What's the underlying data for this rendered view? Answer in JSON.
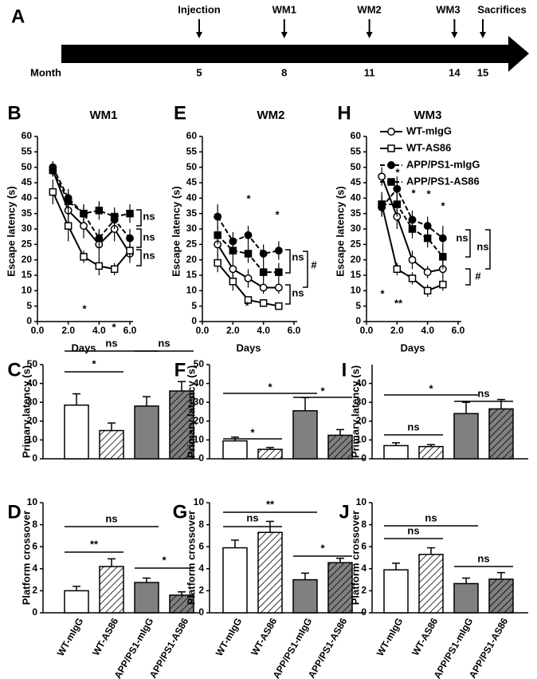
{
  "chart_data": [
    {
      "type": "timeline",
      "panel": "A",
      "xlabel": "Month",
      "events": [
        {
          "label": "Injection",
          "month": 5
        },
        {
          "label": "WM1",
          "month": 8
        },
        {
          "label": "WM2",
          "month": 11
        },
        {
          "label": "WM3",
          "month": 14
        },
        {
          "label": "Sacrifices",
          "month": 15
        }
      ]
    },
    {
      "type": "line",
      "panel": "B",
      "title": "WM1",
      "xlabel": "Days",
      "ylabel": "Escape latency (s)",
      "x": [
        1,
        2,
        3,
        4,
        5,
        6
      ],
      "xlim": [
        0,
        6
      ],
      "xticks": [
        {
          "value": 0,
          "label": "0.0"
        },
        {
          "value": 2,
          "label": "2.0"
        },
        {
          "value": 4,
          "label": "4.0"
        },
        {
          "value": 6,
          "label": "6.0"
        }
      ],
      "ylim": [
        0,
        60
      ],
      "yticks": [
        0,
        5,
        10,
        15,
        20,
        25,
        30,
        35,
        40,
        45,
        50,
        55,
        60
      ],
      "series": [
        {
          "color": "#000000",
          "marker": "circle",
          "filled": false,
          "dashed": false,
          "values": [
            49,
            36,
            31,
            25,
            30,
            22
          ],
          "errors": [
            2,
            4,
            4,
            4,
            4,
            3
          ]
        },
        {
          "color": "#000000",
          "marker": "square",
          "filled": false,
          "dashed": false,
          "values": [
            42,
            31,
            21,
            18,
            17,
            23
          ],
          "errors": [
            4,
            5,
            2,
            3,
            2,
            3
          ]
        },
        {
          "color": "#000000",
          "marker": "circle",
          "filled": true,
          "dashed": true,
          "values": [
            50,
            40,
            35,
            27,
            33,
            27
          ],
          "errors": [
            2,
            3,
            3,
            3,
            3,
            3
          ]
        },
        {
          "color": "#000000",
          "marker": "square",
          "filled": true,
          "dashed": true,
          "values": [
            49,
            39,
            35,
            36,
            34,
            35
          ],
          "errors": [
            2,
            3,
            3,
            3,
            3,
            3
          ]
        }
      ],
      "annotations": [
        "*",
        "*",
        "ns",
        "ns",
        "ns"
      ]
    },
    {
      "type": "line",
      "panel": "E",
      "title": "WM2",
      "xlabel": "Days",
      "ylabel": "Escape latency (s)",
      "x": [
        1,
        2,
        3,
        4,
        5
      ],
      "xlim": [
        0,
        6
      ],
      "xticks": [
        {
          "value": 0,
          "label": "0.0"
        },
        {
          "value": 2,
          "label": "2.0"
        },
        {
          "value": 4,
          "label": "4.0"
        },
        {
          "value": 6,
          "label": "6.0"
        }
      ],
      "ylim": [
        0,
        60
      ],
      "yticks": [
        0,
        5,
        10,
        15,
        20,
        25,
        30,
        35,
        40,
        45,
        50,
        55,
        60
      ],
      "series": [
        {
          "color": "#000000",
          "marker": "circle",
          "filled": false,
          "dashed": false,
          "values": [
            25,
            17,
            14,
            11,
            11
          ],
          "errors": [
            4,
            3,
            3,
            2,
            2
          ]
        },
        {
          "color": "#000000",
          "marker": "square",
          "filled": false,
          "dashed": false,
          "values": [
            19,
            13,
            7,
            6,
            5
          ],
          "errors": [
            3,
            3,
            1,
            1,
            1
          ]
        },
        {
          "color": "#000000",
          "marker": "circle",
          "filled": true,
          "dashed": true,
          "values": [
            34,
            26,
            28,
            22,
            23
          ],
          "errors": [
            4,
            3,
            3,
            3,
            3
          ]
        },
        {
          "color": "#000000",
          "marker": "square",
          "filled": true,
          "dashed": true,
          "values": [
            28,
            23,
            22,
            16,
            16
          ],
          "errors": [
            3,
            3,
            3,
            3,
            3
          ]
        }
      ],
      "annotations": [
        "*",
        "*",
        "*",
        "ns",
        "#",
        "ns"
      ]
    },
    {
      "type": "line",
      "panel": "H",
      "title": "WM3",
      "xlabel": "Days",
      "ylabel": "Escape latency (s)",
      "x": [
        1,
        2,
        3,
        4,
        5
      ],
      "xlim": [
        0,
        6
      ],
      "xticks": [
        {
          "value": 0,
          "label": "0.0"
        },
        {
          "value": 2,
          "label": "2.0"
        },
        {
          "value": 4,
          "label": "4.0"
        },
        {
          "value": 6,
          "label": "6.0"
        }
      ],
      "ylim": [
        0,
        60
      ],
      "yticks": [
        0,
        5,
        10,
        15,
        20,
        25,
        30,
        35,
        40,
        45,
        50,
        55,
        60
      ],
      "legend": "upper right",
      "series": [
        {
          "name": "WT-mIgG",
          "color": "#000000",
          "marker": "circle",
          "filled": false,
          "dashed": false,
          "values": [
            47,
            34,
            20,
            16,
            17
          ],
          "errors": [
            3,
            4,
            3,
            2,
            3
          ]
        },
        {
          "name": "WT-AS86",
          "color": "#000000",
          "marker": "square",
          "filled": false,
          "dashed": false,
          "values": [
            38,
            17,
            14,
            10,
            12
          ],
          "errors": [
            4,
            2,
            2,
            2,
            2
          ]
        },
        {
          "name": "APP/PS1-mIgG",
          "color": "#000000",
          "marker": "circle",
          "filled": true,
          "dashed": true,
          "values": [
            37,
            43,
            33,
            31,
            27
          ],
          "errors": [
            3,
            4,
            3,
            3,
            4
          ]
        },
        {
          "name": "APP/PS1-AS86",
          "color": "#000000",
          "marker": "square",
          "filled": true,
          "dashed": true,
          "values": [
            38,
            38,
            30,
            27,
            21
          ],
          "errors": [
            3,
            4,
            3,
            3,
            4
          ]
        }
      ],
      "annotations": [
        "*",
        "**",
        "*",
        "*",
        "*",
        "*",
        "ns",
        "ns",
        "#"
      ]
    },
    {
      "type": "bar",
      "panel": "C",
      "ylabel": "Primary latency (s)",
      "categories": [
        null,
        null,
        null,
        null
      ],
      "values": [
        28.5,
        15,
        28,
        36
      ],
      "errors": [
        6,
        4,
        5,
        5
      ],
      "colors": [
        "#ffffff",
        "#ffffff",
        "#808080",
        "#808080"
      ],
      "hatch": [
        false,
        true,
        false,
        true
      ],
      "ylim": [
        0,
        50
      ],
      "yticks": [
        0,
        10,
        20,
        30,
        40,
        50
      ],
      "annotations": [
        "ns",
        "*",
        "ns"
      ]
    },
    {
      "type": "bar",
      "panel": "F",
      "ylabel": "Primary latency (s)",
      "categories": [
        null,
        null,
        null,
        null
      ],
      "values": [
        9.5,
        5,
        25.5,
        12.5
      ],
      "errors": [
        2,
        1,
        7,
        3
      ],
      "colors": [
        "#ffffff",
        "#ffffff",
        "#808080",
        "#808080"
      ],
      "hatch": [
        false,
        true,
        false,
        true
      ],
      "ylim": [
        0,
        50
      ],
      "yticks": [
        0,
        10,
        20,
        30,
        40,
        50
      ],
      "annotations": [
        "*",
        "*",
        "*"
      ]
    },
    {
      "type": "bar",
      "panel": "I",
      "ylabel": "Primary latency (s)",
      "categories": [
        null,
        null,
        null,
        null
      ],
      "values": [
        7,
        6.5,
        24,
        26.5
      ],
      "errors": [
        1.5,
        1,
        6,
        5
      ],
      "colors": [
        "#ffffff",
        "#ffffff",
        "#808080",
        "#808080"
      ],
      "hatch": [
        false,
        true,
        false,
        true
      ],
      "ylim": [
        0,
        50
      ],
      "yticks": [
        0,
        10,
        20,
        30,
        40
      ],
      "annotations": [
        "*",
        "ns",
        "ns"
      ]
    },
    {
      "type": "bar",
      "panel": "D",
      "ylabel": "Platform crossover",
      "categories": [
        "WT-mIgG",
        "WT-AS86",
        "APP/PS1-mIgG",
        "APP/PS1-AS86"
      ],
      "values": [
        2,
        4.2,
        2.75,
        1.6
      ],
      "errors": [
        0.4,
        0.7,
        0.4,
        0.3
      ],
      "colors": [
        "#ffffff",
        "#ffffff",
        "#808080",
        "#808080"
      ],
      "hatch": [
        false,
        true,
        false,
        true
      ],
      "ylim": [
        0,
        10
      ],
      "yticks": [
        0,
        2,
        4,
        6,
        8,
        10
      ],
      "annotations": [
        "ns",
        "**",
        "*"
      ]
    },
    {
      "type": "bar",
      "panel": "G",
      "ylabel": "Platform crossover",
      "categories": [
        "WT-mIgG",
        "WT-AS86",
        "APP/PS1-mIgG",
        "APP/PS1-AS86"
      ],
      "values": [
        5.9,
        7.3,
        3,
        4.55
      ],
      "errors": [
        0.7,
        1,
        0.6,
        0.4
      ],
      "colors": [
        "#ffffff",
        "#ffffff",
        "#808080",
        "#808080"
      ],
      "hatch": [
        false,
        true,
        false,
        true
      ],
      "ylim": [
        0,
        10
      ],
      "yticks": [
        0,
        2,
        4,
        6,
        8,
        10
      ],
      "annotations": [
        "**",
        "ns",
        "*"
      ]
    },
    {
      "type": "bar",
      "panel": "J",
      "ylabel": "Platform crossover",
      "categories": [
        "WT-mIgG",
        "WT-AS86",
        "APP/PS1-mIgG",
        "APP/PS1-AS86"
      ],
      "values": [
        3.9,
        5.3,
        2.65,
        3.05
      ],
      "errors": [
        0.6,
        0.6,
        0.5,
        0.6
      ],
      "colors": [
        "#ffffff",
        "#ffffff",
        "#808080",
        "#808080"
      ],
      "hatch": [
        false,
        true,
        false,
        true
      ],
      "ylim": [
        0,
        10
      ],
      "yticks": [
        0,
        2,
        4,
        6,
        8,
        10
      ],
      "annotations": [
        "ns",
        "ns",
        "ns"
      ]
    }
  ]
}
